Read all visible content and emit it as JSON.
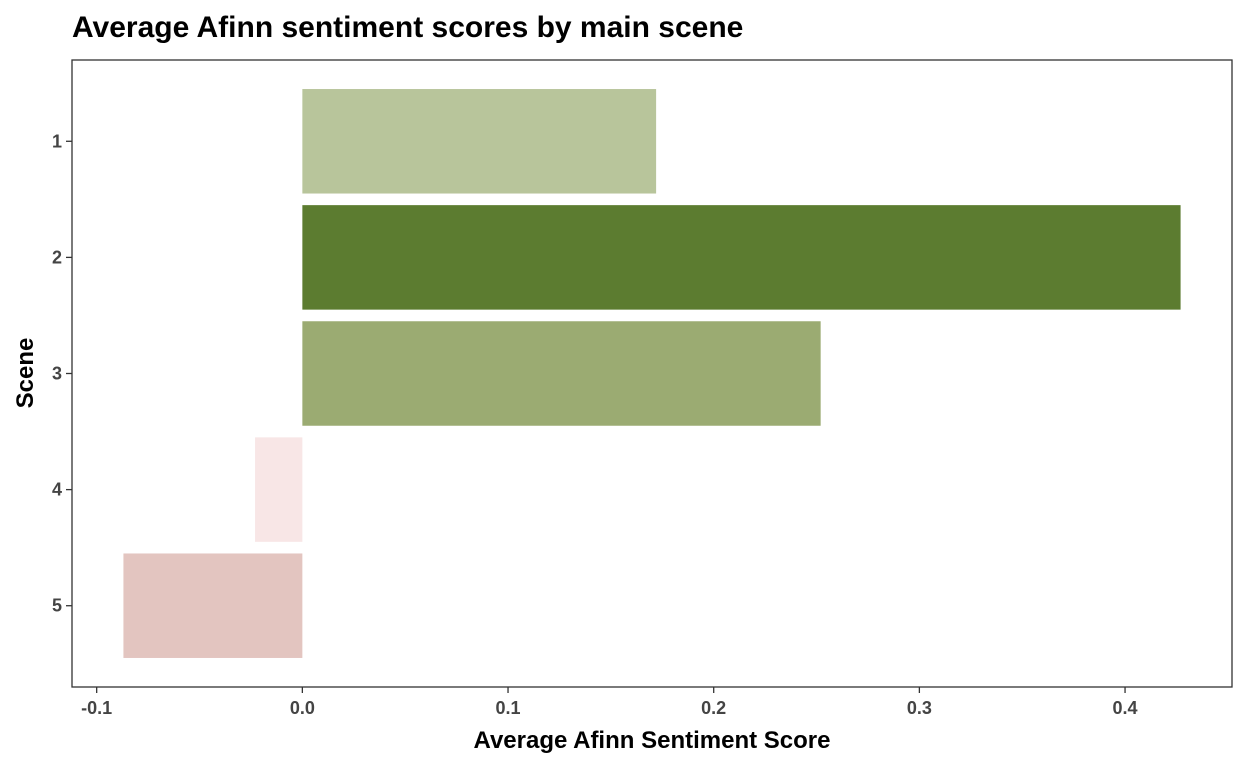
{
  "chart_data": {
    "type": "bar",
    "orientation": "horizontal",
    "title": "Average Afinn sentiment scores by main scene",
    "xlabel": "Average Afinn Sentiment Score",
    "ylabel": "Scene",
    "categories": [
      "1",
      "2",
      "3",
      "4",
      "5"
    ],
    "values": [
      0.172,
      0.427,
      0.252,
      -0.023,
      -0.087
    ],
    "colors": [
      "#b8c59b",
      "#5c7c30",
      "#9bab72",
      "#f8e6e6",
      "#e3c5c0"
    ],
    "xlim": [
      -0.112,
      0.452
    ],
    "x_ticks": [
      -0.1,
      0.0,
      0.1,
      0.2,
      0.3,
      0.4
    ],
    "x_tick_labels": [
      "-0.1",
      "0.0",
      "0.1",
      "0.2",
      "0.3",
      "0.4"
    ],
    "grid": false,
    "legend": "none"
  }
}
